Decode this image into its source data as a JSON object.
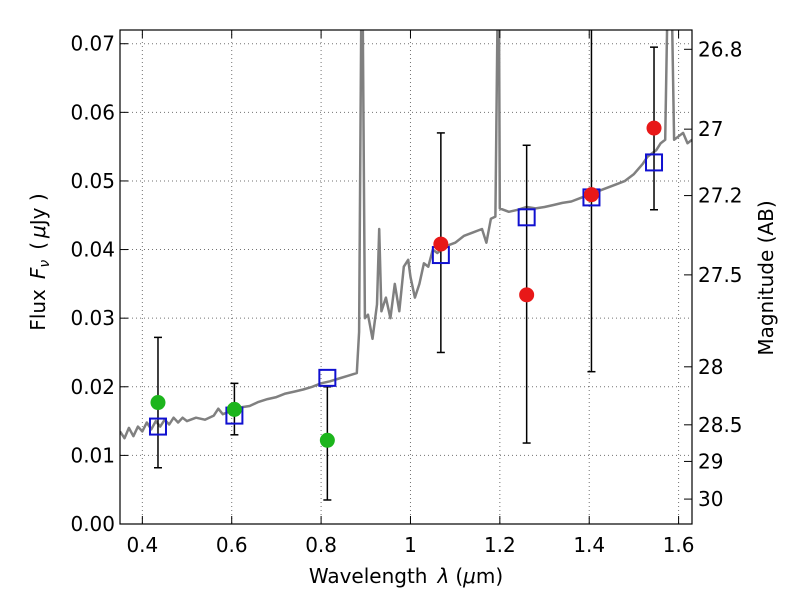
{
  "chart_data": {
    "type": "scatter",
    "title": "",
    "xlabel_pre": "Wavelength",
    "xlabel_var": "λ",
    "xlabel_unit_pre": "(",
    "xlabel_mu": "μ",
    "xlabel_unit_post": "m)",
    "ylabel_pre": "Flux",
    "ylabel_var": "F",
    "ylabel_sub": "ν",
    "ylabel_unit_pre": "(",
    "ylabel_mu": "μ",
    "ylabel_unit_post": "Jy )",
    "y2label": "Magnitude (AB)",
    "xlim": [
      0.35,
      1.63
    ],
    "ylim": [
      0.0,
      0.072
    ],
    "x_ticks": [
      0.4,
      0.6,
      0.8,
      1.0,
      1.2,
      1.4,
      1.6
    ],
    "x_tick_labels": [
      "0.4",
      "0.6",
      "0.8",
      "1",
      "1.2",
      "1.4",
      "1.6"
    ],
    "y_ticks": [
      0.0,
      0.01,
      0.02,
      0.03,
      0.04,
      0.05,
      0.06,
      0.07
    ],
    "y_tick_labels": [
      "0.00",
      "0.01",
      "0.02",
      "0.03",
      "0.04",
      "0.05",
      "0.06",
      "0.07"
    ],
    "y2_ticks": [
      26.8,
      27.0,
      27.2,
      27.5,
      28.0,
      28.5,
      29.0,
      30.0
    ],
    "y2_tick_labels": [
      "26.8",
      "27",
      "27.2",
      "27.5",
      "28",
      "28.5",
      "29",
      "30"
    ],
    "grid": true,
    "colors": {
      "model": "#808080",
      "green": "#1cb51c",
      "red": "#e81818",
      "square": "#1010d0",
      "errorbar": "#000000"
    },
    "model_spectrum": [
      [
        0.35,
        0.0135
      ],
      [
        0.36,
        0.0125
      ],
      [
        0.37,
        0.014
      ],
      [
        0.38,
        0.0128
      ],
      [
        0.39,
        0.0142
      ],
      [
        0.4,
        0.0135
      ],
      [
        0.41,
        0.0148
      ],
      [
        0.42,
        0.0138
      ],
      [
        0.43,
        0.015
      ],
      [
        0.44,
        0.0142
      ],
      [
        0.45,
        0.0152
      ],
      [
        0.46,
        0.0145
      ],
      [
        0.47,
        0.0155
      ],
      [
        0.48,
        0.0148
      ],
      [
        0.49,
        0.0155
      ],
      [
        0.5,
        0.015
      ],
      [
        0.52,
        0.0155
      ],
      [
        0.54,
        0.0152
      ],
      [
        0.56,
        0.0158
      ],
      [
        0.57,
        0.0168
      ],
      [
        0.58,
        0.016
      ],
      [
        0.6,
        0.0165
      ],
      [
        0.62,
        0.017
      ],
      [
        0.64,
        0.0172
      ],
      [
        0.66,
        0.0178
      ],
      [
        0.68,
        0.0182
      ],
      [
        0.7,
        0.0185
      ],
      [
        0.72,
        0.019
      ],
      [
        0.74,
        0.0193
      ],
      [
        0.76,
        0.0196
      ],
      [
        0.78,
        0.02
      ],
      [
        0.8,
        0.0205
      ],
      [
        0.82,
        0.0208
      ],
      [
        0.84,
        0.0212
      ],
      [
        0.86,
        0.0216
      ],
      [
        0.88,
        0.022
      ],
      [
        0.885,
        0.028
      ],
      [
        0.89,
        0.075
      ],
      [
        0.893,
        0.075
      ],
      [
        0.898,
        0.03
      ],
      [
        0.905,
        0.0305
      ],
      [
        0.915,
        0.027
      ],
      [
        0.925,
        0.032
      ],
      [
        0.93,
        0.043
      ],
      [
        0.935,
        0.031
      ],
      [
        0.945,
        0.033
      ],
      [
        0.955,
        0.03
      ],
      [
        0.965,
        0.035
      ],
      [
        0.975,
        0.031
      ],
      [
        0.985,
        0.0375
      ],
      [
        0.995,
        0.0385
      ],
      [
        1.0,
        0.036
      ],
      [
        1.01,
        0.033
      ],
      [
        1.02,
        0.035
      ],
      [
        1.03,
        0.038
      ],
      [
        1.04,
        0.0375
      ],
      [
        1.05,
        0.04
      ],
      [
        1.06,
        0.0395
      ],
      [
        1.08,
        0.0405
      ],
      [
        1.1,
        0.041
      ],
      [
        1.12,
        0.042
      ],
      [
        1.14,
        0.0425
      ],
      [
        1.16,
        0.043
      ],
      [
        1.17,
        0.041
      ],
      [
        1.18,
        0.0445
      ],
      [
        1.19,
        0.0448
      ],
      [
        1.195,
        0.075
      ],
      [
        1.198,
        0.075
      ],
      [
        1.2,
        0.046
      ],
      [
        1.22,
        0.0455
      ],
      [
        1.24,
        0.0458
      ],
      [
        1.26,
        0.0462
      ],
      [
        1.28,
        0.046
      ],
      [
        1.3,
        0.0462
      ],
      [
        1.32,
        0.0465
      ],
      [
        1.34,
        0.0468
      ],
      [
        1.36,
        0.047
      ],
      [
        1.38,
        0.0475
      ],
      [
        1.4,
        0.048
      ],
      [
        1.42,
        0.0485
      ],
      [
        1.44,
        0.049
      ],
      [
        1.46,
        0.0495
      ],
      [
        1.48,
        0.05
      ],
      [
        1.5,
        0.051
      ],
      [
        1.52,
        0.0525
      ],
      [
        1.53,
        0.0535
      ],
      [
        1.54,
        0.054
      ],
      [
        1.55,
        0.0545
      ],
      [
        1.56,
        0.0555
      ],
      [
        1.57,
        0.056
      ],
      [
        1.575,
        0.075
      ],
      [
        1.585,
        0.075
      ],
      [
        1.59,
        0.056
      ],
      [
        1.6,
        0.0565
      ],
      [
        1.61,
        0.057
      ],
      [
        1.62,
        0.0555
      ],
      [
        1.63,
        0.056
      ]
    ],
    "model_points": [
      {
        "x": 0.435,
        "y": 0.0142
      },
      {
        "x": 0.606,
        "y": 0.0158
      },
      {
        "x": 0.814,
        "y": 0.0213
      },
      {
        "x": 1.068,
        "y": 0.0392
      },
      {
        "x": 1.26,
        "y": 0.0447
      },
      {
        "x": 1.405,
        "y": 0.0476
      },
      {
        "x": 1.545,
        "y": 0.0527
      }
    ],
    "observed_points": [
      {
        "x": 0.435,
        "y": 0.0177,
        "err_low": 0.0082,
        "err_high": 0.0272,
        "color": "green"
      },
      {
        "x": 0.606,
        "y": 0.0167,
        "err_low": 0.013,
        "err_high": 0.0205,
        "color": "green"
      },
      {
        "x": 0.814,
        "y": 0.0122,
        "err_low": 0.0035,
        "err_high": 0.02,
        "color": "green"
      },
      {
        "x": 1.068,
        "y": 0.0408,
        "err_low": 0.025,
        "err_high": 0.057,
        "color": "red"
      },
      {
        "x": 1.26,
        "y": 0.0334,
        "err_low": 0.0118,
        "err_high": 0.0552,
        "color": "red"
      },
      {
        "x": 1.405,
        "y": 0.048,
        "err_low": 0.0222,
        "err_high": 0.075,
        "color": "red"
      },
      {
        "x": 1.545,
        "y": 0.0577,
        "err_low": 0.0458,
        "err_high": 0.0695,
        "color": "red"
      }
    ]
  }
}
